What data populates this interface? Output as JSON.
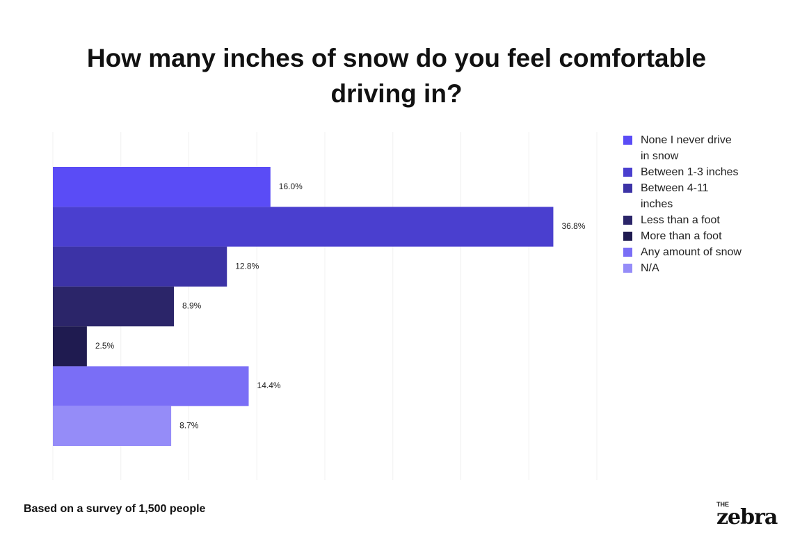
{
  "chart_data": {
    "type": "bar",
    "orientation": "horizontal",
    "title": "How many inches of snow do you feel comfortable driving in?",
    "series": [
      {
        "name": "None I never drive in snow",
        "color": "#5a4cf6",
        "values": [
          16.0
        ],
        "value_labels": [
          "16.0%"
        ]
      },
      {
        "name": "Between 1-3 inches",
        "color": "#4a3fcf",
        "values": [
          36.8
        ],
        "value_labels": [
          "36.8%"
        ]
      },
      {
        "name": "Between 4-11 inches",
        "color": "#3c33a6",
        "values": [
          12.8
        ],
        "value_labels": [
          "12.8%"
        ]
      },
      {
        "name": "Less than a foot",
        "color": "#2b2569",
        "values": [
          8.9
        ],
        "value_labels": [
          "8.9%"
        ]
      },
      {
        "name": "More than a foot",
        "color": "#1f1b50",
        "values": [
          2.5
        ],
        "value_labels": [
          "2.5%"
        ]
      },
      {
        "name": "Any amount of snow",
        "color": "#7a6ef6",
        "values": [
          14.4
        ],
        "value_labels": [
          "14.4%"
        ]
      },
      {
        "name": "N/A",
        "color": "#958cf8",
        "values": [
          8.7
        ],
        "value_labels": [
          "8.7%"
        ]
      }
    ],
    "xlim": [
      0,
      40
    ],
    "xticks": [
      0,
      5,
      10,
      15,
      20,
      25,
      30,
      35,
      40
    ],
    "grid": true,
    "legend": "right",
    "note": "Based on a survey of 1,500 people",
    "logo_small": "THE",
    "logo": "zebra"
  }
}
